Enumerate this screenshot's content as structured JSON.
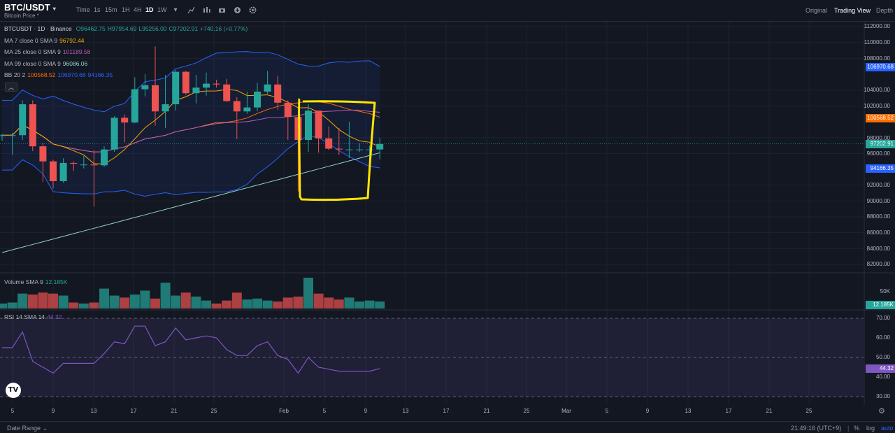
{
  "header": {
    "symbol": "BTC/USDT",
    "symbol_caret": "▾",
    "subtitle": "Bitcoin Price *",
    "intervals": [
      "Time",
      "1s",
      "15m",
      "1H",
      "4H",
      "1D",
      "1W"
    ],
    "active_interval": "1D",
    "right_tabs": [
      "Original",
      "Trading View",
      "Depth"
    ],
    "active_right_tab": "Trading View"
  },
  "legend": {
    "symbol_line": "BTCUSDT · 1D · Binance",
    "open": "O96462.75",
    "high": "H97954.69",
    "low": "L95256.00",
    "close": "C97202.91",
    "change": "+740.16 (+0.77%)",
    "ma7_label": "MA 7 close 0 SMA 9",
    "ma7_value": "96792.44",
    "ma25_label": "MA 25 close 0 SMA 9",
    "ma25_value": "101189.58",
    "ma99_label": "MA 99 close 0 SMA 9",
    "ma99_value": "96086.06",
    "bb_label": "BB 20 2",
    "bb_mid": "100568.52",
    "bb_upper": "106970.68",
    "bb_lower": "94166.35",
    "volume_label": "Volume SMA 9",
    "volume_value": "12.185K",
    "rsi_label": "RSI 14 SMA 14",
    "rsi_value": "44.32"
  },
  "price_axis": [
    "112000.00",
    "110000.00",
    "108000.00",
    "104000.00",
    "102000.00",
    "98000.00",
    "96000.00",
    "92000.00",
    "90000.00",
    "88000.00",
    "86000.00",
    "84000.00",
    "82000.00"
  ],
  "price_tags": {
    "bb_upper": "106970.68",
    "bb_mid": "100568.52",
    "last": "97202.91",
    "bb_lower": "94166.35",
    "volume": "12.185K",
    "rsi": "44.32"
  },
  "volume_axis": [
    "50K"
  ],
  "rsi_axis": [
    "70.00",
    "60.00",
    "50.00",
    "40.00",
    "30.00"
  ],
  "date_axis": [
    "5",
    "9",
    "13",
    "17",
    "21",
    "25",
    "Feb",
    "5",
    "9",
    "13",
    "17",
    "21",
    "25",
    "Mar",
    "5",
    "9",
    "13",
    "17",
    "21",
    "25"
  ],
  "footer": {
    "date_range": "Date Range",
    "date_range_caret": "⌄",
    "time": "21:49:16 (UTC+9)",
    "percent": "%",
    "log": "log",
    "auto": "auto"
  },
  "icons": {
    "collapse": "chevron-up-icon",
    "logo": "tradingview-logo",
    "settings": "gear-icon"
  },
  "colors": {
    "up": "#26a69a",
    "down": "#ef5350",
    "ma7": "#f7a600",
    "ma25": "#b95ab9",
    "ma99": "#8fd3c6",
    "bb_band": "#2962ff",
    "bb_mid": "#ff6d00",
    "highlight": "#ffe600",
    "rsi": "#7e57c2"
  },
  "chart_data": {
    "type": "candlestick",
    "x": [
      "Jan 4",
      "Jan 5",
      "Jan 6",
      "Jan 7",
      "Jan 8",
      "Jan 9",
      "Jan 10",
      "Jan 11",
      "Jan 12",
      "Jan 13",
      "Jan 14",
      "Jan 15",
      "Jan 16",
      "Jan 17",
      "Jan 18",
      "Jan 19",
      "Jan 20",
      "Jan 21",
      "Jan 22",
      "Jan 23",
      "Jan 24",
      "Jan 25",
      "Jan 26",
      "Jan 27",
      "Jan 28",
      "Jan 29",
      "Jan 30",
      "Jan 31",
      "Feb 1",
      "Feb 2",
      "Feb 3",
      "Feb 4",
      "Feb 5",
      "Feb 6",
      "Feb 7",
      "Feb 8",
      "Feb 9",
      "Feb 10"
    ],
    "open": [
      98200,
      98300,
      98300,
      102200,
      96900,
      95000,
      92500,
      94800,
      94600,
      94600,
      94500,
      96500,
      100500,
      99900,
      104100,
      104600,
      101300,
      102200,
      106300,
      103600,
      104300,
      104800,
      104700,
      102600,
      101300,
      101800,
      103800,
      104700,
      102400,
      100600,
      97700,
      101400,
      97900,
      96600,
      96500,
      96500,
      96500,
      96500
    ],
    "high": [
      98500,
      98600,
      102700,
      102700,
      97300,
      95200,
      95400,
      95000,
      95700,
      96400,
      96900,
      100700,
      100900,
      105600,
      106000,
      109500,
      105900,
      106500,
      106400,
      105900,
      106200,
      105300,
      105400,
      103100,
      103800,
      104900,
      106400,
      105800,
      102700,
      101700,
      102200,
      101400,
      99400,
      99200,
      100000,
      97300,
      97000,
      97954
    ],
    "low": [
      97600,
      95800,
      97700,
      96300,
      92400,
      91600,
      92300,
      93800,
      94100,
      89300,
      94300,
      96200,
      97400,
      99800,
      103200,
      99500,
      99200,
      101400,
      103400,
      102300,
      103300,
      104300,
      102500,
      97800,
      101000,
      101300,
      103500,
      101500,
      97700,
      91200,
      96200,
      96100,
      96400,
      95800,
      95400,
      96200,
      95000,
      95256
    ],
    "close": [
      98300,
      98300,
      102200,
      96900,
      95000,
      92500,
      94800,
      94700,
      94600,
      94500,
      96500,
      100500,
      99900,
      104100,
      104600,
      101300,
      102200,
      106300,
      103600,
      104300,
      104800,
      104700,
      102600,
      101300,
      101800,
      103800,
      104700,
      102400,
      100600,
      97700,
      101400,
      97900,
      96600,
      96500,
      96500,
      96500,
      96500,
      97202.91
    ],
    "volume_k": [
      5,
      6,
      15,
      14,
      16,
      15,
      13,
      6,
      5,
      6,
      20,
      13,
      11,
      14,
      18,
      10,
      26,
      13,
      16,
      12,
      8,
      5,
      8,
      16,
      9,
      10,
      8,
      7,
      11,
      12,
      31,
      15,
      11,
      9,
      11,
      7,
      8,
      7
    ],
    "rsi": [
      55,
      55,
      63,
      48,
      45,
      42,
      47,
      47,
      47,
      47,
      52,
      58,
      57,
      66,
      66,
      56,
      58,
      65,
      59,
      60,
      61,
      60,
      54,
      51,
      51,
      56,
      58,
      51,
      49,
      42,
      50,
      45,
      44,
      43,
      43,
      43,
      43,
      44.32
    ],
    "ylim": [
      81000,
      113000
    ],
    "series": [
      {
        "name": "MA 7 close 0 SMA 9"
      },
      {
        "name": "MA 25 close 0 SMA 9"
      },
      {
        "name": "MA 99 close 0 SMA 9"
      },
      {
        "name": "BB 20 2"
      }
    ],
    "annotation": "highlight-rectangle Feb 2 - Feb 9"
  }
}
